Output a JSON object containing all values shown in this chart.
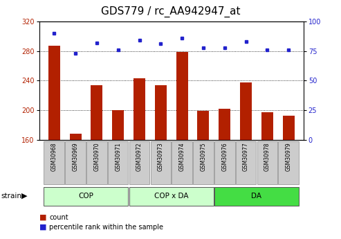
{
  "title": "GDS779 / rc_AA942947_at",
  "samples": [
    "GSM30968",
    "GSM30969",
    "GSM30970",
    "GSM30971",
    "GSM30972",
    "GSM30973",
    "GSM30974",
    "GSM30975",
    "GSM30976",
    "GSM30977",
    "GSM30978",
    "GSM30979"
  ],
  "bar_values": [
    287,
    168,
    234,
    200,
    243,
    234,
    279,
    199,
    202,
    238,
    197,
    193
  ],
  "dot_values": [
    90,
    73,
    82,
    76,
    84,
    81,
    86,
    78,
    78,
    83,
    76,
    76
  ],
  "bar_color": "#b22000",
  "dot_color": "#2222cc",
  "ylim_left": [
    160,
    320
  ],
  "ylim_right": [
    0,
    100
  ],
  "yticks_left": [
    160,
    200,
    240,
    280,
    320
  ],
  "yticks_right": [
    0,
    25,
    50,
    75,
    100
  ],
  "grid_values": [
    200,
    240,
    280
  ],
  "groups": [
    {
      "label": "COP",
      "start": 0,
      "end": 3,
      "color": "#ccffcc"
    },
    {
      "label": "COP x DA",
      "start": 4,
      "end": 7,
      "color": "#ccffcc"
    },
    {
      "label": "DA",
      "start": 8,
      "end": 11,
      "color": "#44dd44"
    }
  ],
  "strain_label": "strain",
  "legend_count": "count",
  "legend_pct": "percentile rank within the sample",
  "title_fontsize": 11,
  "tick_fontsize": 7,
  "label_fontsize": 8
}
